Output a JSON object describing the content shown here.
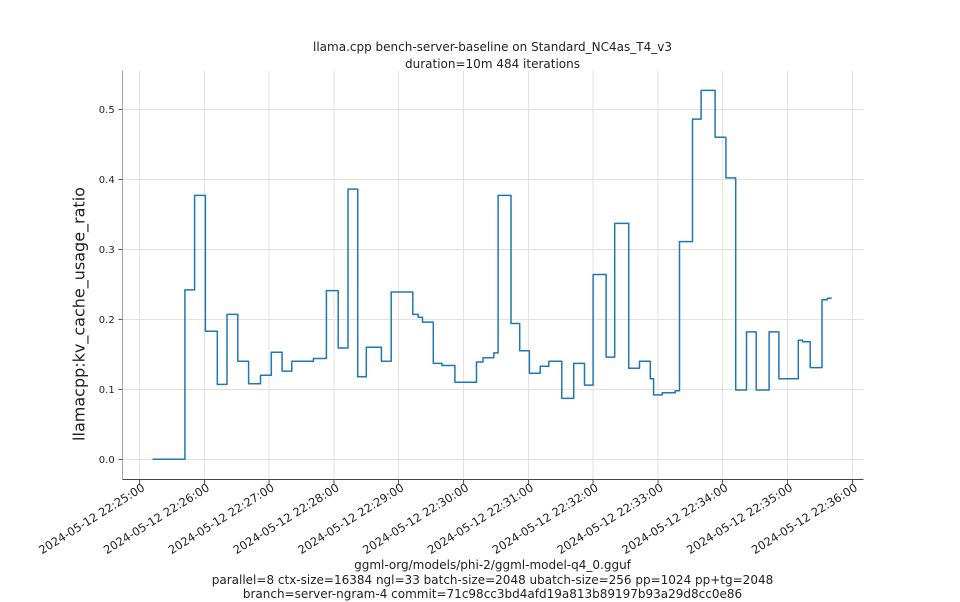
{
  "figure": {
    "title": "llama.cpp bench-server-baseline on Standard_NC4as_T4_v3",
    "subtitle": "duration=10m 484 iterations",
    "ylabel": "llamacpp:kv_cache_usage_ratio",
    "caption_model": "ggml-org/models/phi-2/ggml-model-q4_0.gguf",
    "caption_params": "parallel=8 ctx-size=16384 ngl=33 batch-size=2048 ubatch-size=256 pp=1024 pp+tg=2048",
    "caption_branch": "branch=server-ngram-4 commit=71c98cc3bd4afd19a813b89197b93a29d8cc0e86"
  },
  "chart_data": {
    "type": "line",
    "step_mode": "after",
    "title": "llama.cpp bench-server-baseline on Standard_NC4as_T4_v3",
    "subtitle": "duration=10m 484 iterations",
    "ylabel": "llamacpp:kv_cache_usage_ratio",
    "xlabel_lines": [
      "ggml-org/models/phi-2/ggml-model-q4_0.gguf",
      "parallel=8 ctx-size=16384 ngl=33 batch-size=2048 ubatch-size=256 pp=1024 pp+tg=2048",
      "branch=server-ngram-4 commit=71c98cc3bd4afd19a813b89197b93a29d8cc0e86"
    ],
    "grid": true,
    "legend": "none",
    "colors": {
      "line": "#1f77b4",
      "gridline": "#e2e2e2",
      "left_spine": "#a3a3a3",
      "bottom_spine": "#454545",
      "tick": "#5a5a5a",
      "text": "#1f1f1f"
    },
    "x_axis": {
      "unit": "seconds since 2024-05-12 22:25:00",
      "xlim_seconds": [
        -15.6,
        670.2
      ],
      "tick_seconds": [
        0,
        60,
        120,
        180,
        240,
        300,
        360,
        420,
        480,
        540,
        600,
        660
      ],
      "tick_labels": [
        "2024-05-12 22:25:00",
        "2024-05-12 22:26:00",
        "2024-05-12 22:27:00",
        "2024-05-12 22:28:00",
        "2024-05-12 22:29:00",
        "2024-05-12 22:30:00",
        "2024-05-12 22:31:00",
        "2024-05-12 22:32:00",
        "2024-05-12 22:33:00",
        "2024-05-12 22:34:00",
        "2024-05-12 22:35:00",
        "2024-05-12 22:36:00"
      ]
    },
    "y_axis": {
      "ylim": [
        -0.0286,
        0.5547
      ],
      "ticks": [
        0.0,
        0.1,
        0.2,
        0.3,
        0.4,
        0.5
      ],
      "tick_labels": [
        "0.0",
        "0.1",
        "0.2",
        "0.3",
        "0.4",
        "0.5"
      ]
    },
    "series": [
      {
        "name": "llamacpp:kv_cache_usage_ratio",
        "points_t_value": [
          [
            12,
            0.0
          ],
          [
            42,
            0.242
          ],
          [
            51,
            0.377
          ],
          [
            61,
            0.183
          ],
          [
            72,
            0.107
          ],
          [
            81,
            0.207
          ],
          [
            91,
            0.14
          ],
          [
            101,
            0.108
          ],
          [
            112,
            0.12
          ],
          [
            122,
            0.153
          ],
          [
            132,
            0.126
          ],
          [
            141,
            0.14
          ],
          [
            161,
            0.144
          ],
          [
            173,
            0.241
          ],
          [
            184,
            0.159
          ],
          [
            193,
            0.386
          ],
          [
            202,
            0.118
          ],
          [
            210,
            0.16
          ],
          [
            224,
            0.14
          ],
          [
            233,
            0.239
          ],
          [
            253,
            0.207
          ],
          [
            258,
            0.203
          ],
          [
            262,
            0.196
          ],
          [
            272,
            0.137
          ],
          [
            280,
            0.134
          ],
          [
            292,
            0.11
          ],
          [
            312,
            0.139
          ],
          [
            318,
            0.145
          ],
          [
            328,
            0.152
          ],
          [
            332,
            0.377
          ],
          [
            344,
            0.194
          ],
          [
            352,
            0.155
          ],
          [
            361,
            0.123
          ],
          [
            371,
            0.133
          ],
          [
            379,
            0.14
          ],
          [
            391,
            0.087
          ],
          [
            402,
            0.137
          ],
          [
            412,
            0.106
          ],
          [
            420,
            0.264
          ],
          [
            432,
            0.146
          ],
          [
            440,
            0.337
          ],
          [
            453,
            0.13
          ],
          [
            463,
            0.14
          ],
          [
            473,
            0.115
          ],
          [
            476,
            0.092
          ],
          [
            484,
            0.095
          ],
          [
            496,
            0.098
          ],
          [
            500,
            0.311
          ],
          [
            512,
            0.486
          ],
          [
            520,
            0.527
          ],
          [
            533,
            0.46
          ],
          [
            543,
            0.402
          ],
          [
            552,
            0.099
          ],
          [
            562,
            0.182
          ],
          [
            571,
            0.099
          ],
          [
            583,
            0.182
          ],
          [
            592,
            0.115
          ],
          [
            610,
            0.17
          ],
          [
            614,
            0.168
          ],
          [
            621,
            0.131
          ],
          [
            632,
            0.228
          ],
          [
            637,
            0.23
          ]
        ],
        "end_t": 641
      }
    ]
  }
}
